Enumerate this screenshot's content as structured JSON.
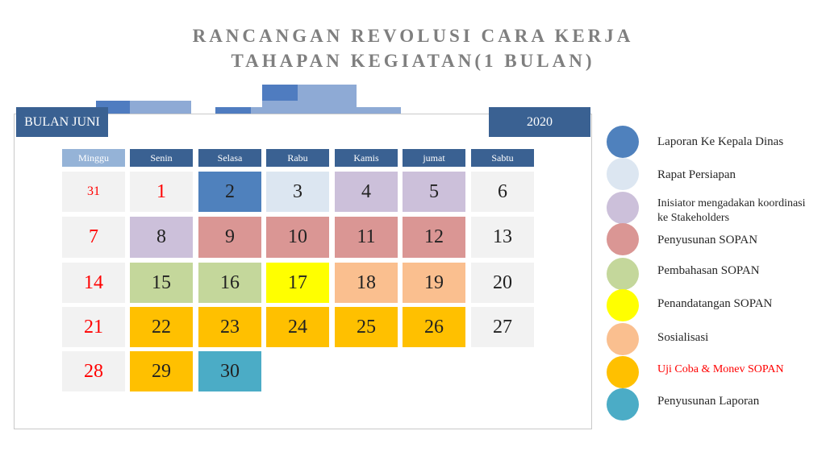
{
  "title": {
    "line1": "RANCANGAN REVOLUSI CARA KERJA",
    "line2": "TAHAPAN KEGIATAN(1 BULAN)"
  },
  "calendar": {
    "month_label": "BULAN JUNI",
    "year_label": "2020",
    "days": [
      "Minggu",
      "Senin",
      "Selasa",
      "Rabu",
      "Kamis",
      "jumat",
      "Sabtu"
    ],
    "weeks": [
      [
        "31",
        "1",
        "2",
        "3",
        "4",
        "5",
        "6"
      ],
      [
        "7",
        "8",
        "9",
        "10",
        "11",
        "12",
        "13"
      ],
      [
        "14",
        "15",
        "16",
        "17",
        "18",
        "19",
        "20"
      ],
      [
        "21",
        "22",
        "23",
        "24",
        "25",
        "26",
        "27"
      ],
      [
        "28",
        "29",
        "30"
      ]
    ],
    "week_colors": [
      [
        "#f2f2f2",
        "#f2f2f2",
        "#4f81bd",
        "#dce6f1",
        "#ccc0da",
        "#ccc0da",
        "#f2f2f2"
      ],
      [
        "#f2f2f2",
        "#ccc0da",
        "#da9694",
        "#da9694",
        "#da9694",
        "#da9694",
        "#f2f2f2"
      ],
      [
        "#f2f2f2",
        "#c4d79b",
        "#c4d79b",
        "#ffff00",
        "#fabf8f",
        "#fabf8f",
        "#f2f2f2"
      ],
      [
        "#f2f2f2",
        "#ffc000",
        "#ffc000",
        "#ffc000",
        "#ffc000",
        "#ffc000",
        "#f2f2f2"
      ],
      [
        "#f2f2f2",
        "#ffc000",
        "#4bacc6"
      ]
    ],
    "sunday_text_color": "#ff0000",
    "monday_first_week_text_color": "#ff0000",
    "minggu_header_color": "#95b3d7",
    "header_color": "#3a6192"
  },
  "legend": [
    {
      "label": "Laporan Ke Kepala Dinas",
      "color": "#4f81bd"
    },
    {
      "label": "Rapat Persiapan",
      "color": "#dce6f1"
    },
    {
      "label": "Inisiator mengadakan koordinasi ke Stakeholders",
      "color": "#ccc0da"
    },
    {
      "label": "Penyusunan SOPAN",
      "color": "#da9694"
    },
    {
      "label": "Pembahasan SOPAN",
      "color": "#c4d79b"
    },
    {
      "label": "Penandatangan SOPAN",
      "color": "#ffff00"
    },
    {
      "label": "Sosialisasi",
      "color": "#fabf8f"
    },
    {
      "label": "Uji Coba & Monev SOPAN",
      "color": "#ffc000",
      "text_color": "#ff0000"
    },
    {
      "label": "Penyusunan Laporan",
      "color": "#4bacc6"
    }
  ]
}
